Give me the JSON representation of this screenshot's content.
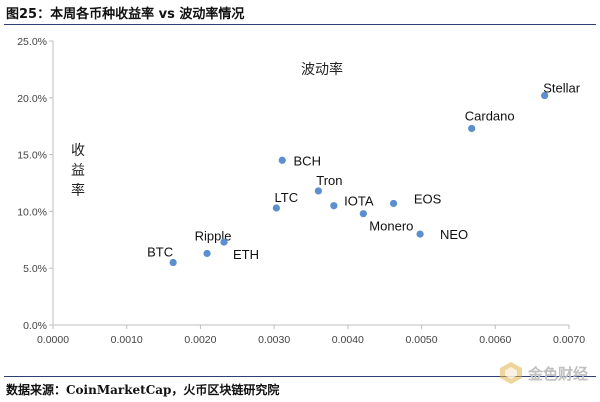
{
  "figure": {
    "title": "图25：本周各币种收益率 vs 波动率情况",
    "source": "数据来源：CoinMarketCap，火币区块链研究院",
    "watermark": "金色财经"
  },
  "chart_data": {
    "type": "scatter",
    "title": "波动率",
    "xlabel": "",
    "ylabel": "收益率",
    "xlim": [
      0,
      0.007
    ],
    "ylim": [
      0,
      0.25
    ],
    "x_ticks": [
      "0.0000",
      "0.0010",
      "0.0020",
      "0.0030",
      "0.0040",
      "0.0050",
      "0.0060",
      "0.0070"
    ],
    "y_ticks": [
      "0.0%",
      "5.0%",
      "10.0%",
      "15.0%",
      "20.0%",
      "25.0%"
    ],
    "grid": false,
    "marker_color": "#5b8fd0",
    "points": [
      {
        "label": "BTC",
        "x": 0.00163,
        "y": 0.055
      },
      {
        "label": "Ripple",
        "x": 0.00209,
        "y": 0.063
      },
      {
        "label": "ETH",
        "x": 0.00232,
        "y": 0.073
      },
      {
        "label": "LTC",
        "x": 0.00303,
        "y": 0.103
      },
      {
        "label": "BCH",
        "x": 0.00311,
        "y": 0.145
      },
      {
        "label": "Tron",
        "x": 0.0036,
        "y": 0.118
      },
      {
        "label": "IOTA",
        "x": 0.00381,
        "y": 0.105
      },
      {
        "label": "Monero",
        "x": 0.00421,
        "y": 0.098
      },
      {
        "label": "EOS",
        "x": 0.00462,
        "y": 0.107
      },
      {
        "label": "NEO",
        "x": 0.00498,
        "y": 0.08
      },
      {
        "label": "Cardano",
        "x": 0.00568,
        "y": 0.173
      },
      {
        "label": "Stellar",
        "x": 0.00667,
        "y": 0.202
      }
    ]
  }
}
